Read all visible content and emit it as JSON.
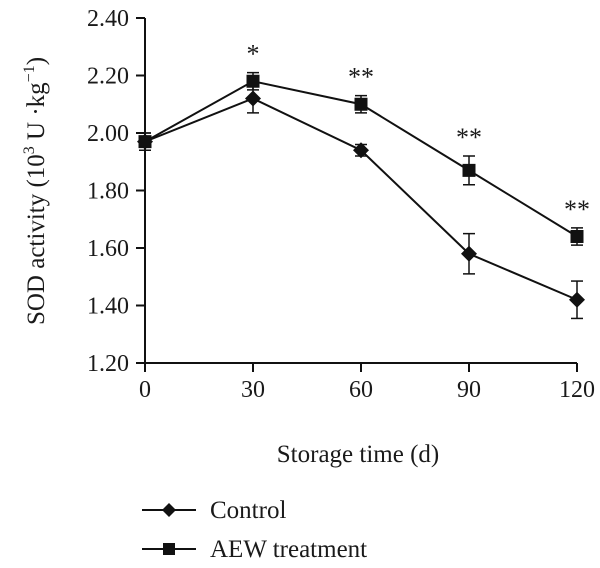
{
  "chart_data": {
    "type": "line",
    "xlabel": "Storage time (d)",
    "ylabel_main": "SOD activity (10",
    "ylabel_sup1": "3",
    "ylabel_mid": " U ·kg",
    "ylabel_sup2": "−1",
    "ylabel_end": ")",
    "x": [
      0,
      30,
      60,
      90,
      120
    ],
    "xlim": [
      0,
      120
    ],
    "ylim": [
      1.2,
      2.4
    ],
    "x_ticks": [
      "0",
      "30",
      "60",
      "90",
      "120"
    ],
    "y_ticks": [
      "1.20",
      "1.40",
      "1.60",
      "1.80",
      "2.00",
      "2.20",
      "2.40"
    ],
    "series": [
      {
        "name": "Control",
        "marker": "diamond",
        "values": [
          1.97,
          2.12,
          1.94,
          1.58,
          1.42
        ],
        "errors": [
          0.03,
          0.05,
          0.02,
          0.07,
          0.065
        ]
      },
      {
        "name": "AEW treatment",
        "marker": "square",
        "values": [
          1.97,
          2.18,
          2.1,
          1.87,
          1.64
        ],
        "errors": [
          0.03,
          0.03,
          0.03,
          0.05,
          0.03
        ]
      }
    ],
    "significance": [
      "",
      "*",
      "**",
      "**",
      "**"
    ],
    "legend_position": "bottom",
    "grid": false,
    "line_color": "#111111"
  }
}
